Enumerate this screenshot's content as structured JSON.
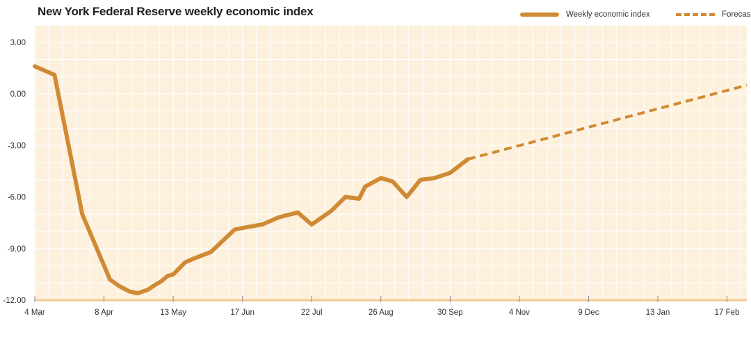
{
  "chart_data": {
    "type": "line",
    "title": "New York Federal Reserve weekly economic index",
    "xlabel": "",
    "ylabel": "",
    "ylim": [
      -12,
      4
    ],
    "yticks": [
      3,
      0,
      -3,
      -6,
      -9,
      -12
    ],
    "ytick_labels": [
      "3.00",
      "0.00",
      "-3.00",
      "-6.00",
      "-9.00",
      "-12.00"
    ],
    "xlim": [
      "2020-03-04",
      "2021-02-27"
    ],
    "xticks": [
      "2020-03-04",
      "2020-04-08",
      "2020-05-13",
      "2020-06-17",
      "2020-07-22",
      "2020-08-26",
      "2020-09-30",
      "2020-11-04",
      "2020-12-09",
      "2021-01-13",
      "2021-02-17"
    ],
    "xtick_labels": [
      "4 Mar",
      "8 Apr",
      "13 May",
      "17 Jun",
      "22 Jul",
      "26 Aug",
      "30 Sep",
      "4 Nov",
      "9 Dec",
      "13 Jan",
      "17 Feb"
    ],
    "grid": true,
    "legend_position": "top-right",
    "colors": {
      "line": "#d08a34",
      "plot_background": "#fdf1de",
      "grid": "#ffffff",
      "baseline": "#f1c98f"
    },
    "series": [
      {
        "name": "Weekly economic index",
        "style": "solid",
        "x": [
          "2020-03-04",
          "2020-03-14",
          "2020-03-28",
          "2020-04-11",
          "2020-04-16",
          "2020-04-21",
          "2020-04-25",
          "2020-04-30",
          "2020-05-04",
          "2020-05-07",
          "2020-05-10",
          "2020-05-13",
          "2020-05-19",
          "2020-05-23",
          "2020-06-01",
          "2020-06-13",
          "2020-06-17",
          "2020-06-27",
          "2020-07-05",
          "2020-07-08",
          "2020-07-15",
          "2020-07-22",
          "2020-08-01",
          "2020-08-08",
          "2020-08-15",
          "2020-08-18",
          "2020-08-26",
          "2020-09-01",
          "2020-09-08",
          "2020-09-15",
          "2020-09-22",
          "2020-09-30",
          "2020-10-09"
        ],
        "values": [
          1.6,
          1.1,
          -7.0,
          -10.8,
          -11.2,
          -11.5,
          -11.6,
          -11.4,
          -11.1,
          -10.9,
          -10.6,
          -10.5,
          -9.8,
          -9.6,
          -9.2,
          -7.9,
          -7.8,
          -7.6,
          -7.2,
          -7.1,
          -6.9,
          -7.6,
          -6.8,
          -6.0,
          -6.1,
          -5.4,
          -4.9,
          -5.1,
          -6.0,
          -5.0,
          -4.9,
          -4.6,
          -3.8
        ]
      },
      {
        "name": "Forecast",
        "style": "dashed",
        "x": [
          "2020-10-09",
          "2021-02-27"
        ],
        "values": [
          -3.8,
          0.5
        ]
      }
    ]
  }
}
